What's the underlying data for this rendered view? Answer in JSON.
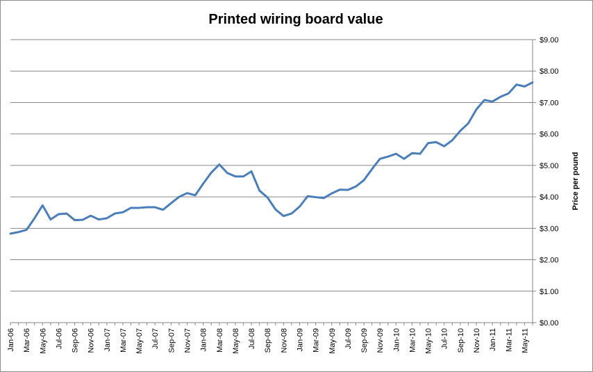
{
  "chart_data": {
    "type": "line",
    "title": "Printed wiring board value",
    "xlabel": "",
    "ylabel": "Price per pound",
    "y_axis_side": "right",
    "ylim": [
      0,
      9
    ],
    "y_ticks": [
      0,
      1,
      2,
      3,
      4,
      5,
      6,
      7,
      8,
      9
    ],
    "y_tick_labels": [
      "$0.00",
      "$1.00",
      "$2.00",
      "$3.00",
      "$4.00",
      "$5.00",
      "$6.00",
      "$7.00",
      "$8.00",
      "$9.00"
    ],
    "x_tick_labels": [
      "Jan-06",
      "Mar-06",
      "May-06",
      "Jul-06",
      "Sep-06",
      "Nov-06",
      "Jan-07",
      "Mar-07",
      "May-07",
      "Jul-07",
      "Sep-07",
      "Nov-07",
      "Jan-08",
      "Mar-08",
      "May-08",
      "Jul-08",
      "Sep-08",
      "Nov-08",
      "Jan-09",
      "Mar-09",
      "May-09",
      "Jul-09",
      "Sep-09",
      "Nov-09",
      "Jan-10",
      "Mar-10",
      "May-10",
      "Jul-10",
      "Sep-10",
      "Nov-10",
      "Jan-11",
      "Mar-11",
      "May-11"
    ],
    "x_label_every": 2,
    "grid": true,
    "legend": "none",
    "series": [
      {
        "color": "#4a7ebb",
        "x": [
          "Jan-06",
          "Feb-06",
          "Mar-06",
          "Apr-06",
          "May-06",
          "Jun-06",
          "Jul-06",
          "Aug-06",
          "Sep-06",
          "Oct-06",
          "Nov-06",
          "Dec-06",
          "Jan-07",
          "Feb-07",
          "Mar-07",
          "Apr-07",
          "May-07",
          "Jun-07",
          "Jul-07",
          "Aug-07",
          "Sep-07",
          "Oct-07",
          "Nov-07",
          "Dec-07",
          "Jan-08",
          "Feb-08",
          "Mar-08",
          "Apr-08",
          "May-08",
          "Jun-08",
          "Jul-08",
          "Aug-08",
          "Sep-08",
          "Oct-08",
          "Nov-08",
          "Dec-08",
          "Jan-09",
          "Feb-09",
          "Mar-09",
          "Apr-09",
          "May-09",
          "Jun-09",
          "Jul-09",
          "Aug-09",
          "Sep-09",
          "Oct-09",
          "Nov-09",
          "Dec-09",
          "Jan-10",
          "Feb-10",
          "Mar-10",
          "Apr-10",
          "May-10",
          "Jun-10",
          "Jul-10",
          "Aug-10",
          "Sep-10",
          "Oct-10",
          "Nov-10",
          "Dec-10",
          "Jan-11",
          "Feb-11",
          "Mar-11",
          "Apr-11",
          "May-11",
          "Jun-11"
        ],
        "values": [
          2.83,
          2.88,
          2.95,
          3.32,
          3.73,
          3.28,
          3.45,
          3.47,
          3.26,
          3.27,
          3.4,
          3.28,
          3.32,
          3.47,
          3.51,
          3.65,
          3.65,
          3.67,
          3.67,
          3.59,
          3.8,
          4.0,
          4.12,
          4.05,
          4.42,
          4.77,
          5.03,
          4.76,
          4.65,
          4.65,
          4.81,
          4.2,
          3.98,
          3.6,
          3.39,
          3.47,
          3.69,
          4.02,
          3.99,
          3.96,
          4.11,
          4.23,
          4.22,
          4.33,
          4.53,
          4.88,
          5.21,
          5.28,
          5.37,
          5.21,
          5.39,
          5.37,
          5.71,
          5.74,
          5.61,
          5.8,
          6.1,
          6.34,
          6.78,
          7.08,
          7.03,
          7.18,
          7.29,
          7.57,
          7.51,
          7.64
        ]
      }
    ]
  }
}
